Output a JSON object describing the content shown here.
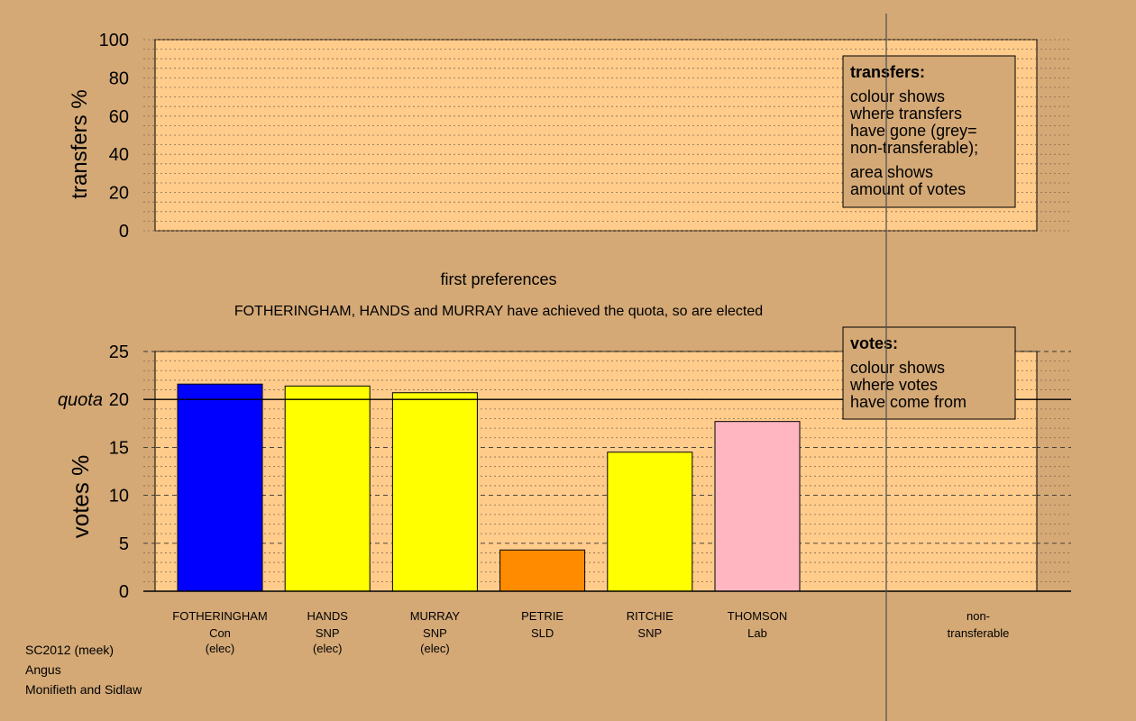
{
  "chart_data": [
    {
      "type": "bar",
      "ylabel": "transfers %",
      "ylim": [
        0,
        100
      ],
      "yticks": [
        0,
        20,
        40,
        60,
        80,
        100
      ],
      "grid": true,
      "categories": [],
      "values": [],
      "legend": {
        "title": "transfers:",
        "lines1": [
          "colour shows",
          "where transfers",
          "have gone (grey=",
          "non-transferable);"
        ],
        "lines2": [
          "area shows",
          "amount of votes"
        ]
      }
    },
    {
      "type": "bar",
      "stage_title": "first preferences",
      "annotation": "FOTHERINGHAM, HANDS and MURRAY have achieved the quota, so are elected",
      "ylabel": "votes %",
      "ylim": [
        0,
        25
      ],
      "yticks": [
        0,
        5,
        10,
        15,
        20,
        25
      ],
      "quota": 20,
      "quota_label": "quota",
      "grid": true,
      "candidates": [
        {
          "name": "FOTHERINGHAM",
          "party": "Con",
          "status": "(elec)",
          "value": 21.6,
          "color": "#0000ff"
        },
        {
          "name": "HANDS",
          "party": "SNP",
          "status": "(elec)",
          "value": 21.4,
          "color": "#ffff00"
        },
        {
          "name": "MURRAY",
          "party": "SNP",
          "status": "(elec)",
          "value": 20.7,
          "color": "#ffff00"
        },
        {
          "name": "PETRIE",
          "party": "SLD",
          "status": "",
          "value": 4.3,
          "color": "#ff8c00"
        },
        {
          "name": "RITCHIE",
          "party": "SNP",
          "status": "",
          "value": 14.5,
          "color": "#ffff00"
        },
        {
          "name": "THOMSON",
          "party": "Lab",
          "status": "",
          "value": 17.7,
          "color": "#ffb6c1"
        }
      ],
      "nontransferable": {
        "line1": "non-",
        "line2": "transferable",
        "value": 0
      },
      "legend": {
        "title": "votes:",
        "lines": [
          "colour shows",
          "where votes",
          "have come from"
        ]
      }
    }
  ],
  "footer": {
    "line1": "SC2012 (meek)",
    "line2": "Angus",
    "line3": "Monifieth and Sidlaw"
  }
}
